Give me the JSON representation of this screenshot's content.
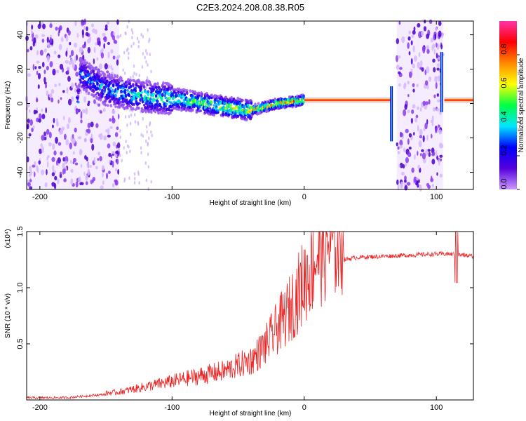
{
  "figure": {
    "title": "C2E3.2024.208.08.38.R05"
  },
  "chart_data": [
    {
      "type": "heatmap",
      "name": "spectrogram",
      "xlabel": "Height of straight line (km)",
      "ylabel": "Frequency (Hz)",
      "xlim": [
        -210,
        128
      ],
      "ylim": [
        -50,
        48
      ],
      "xticks": [
        -200,
        -100,
        0,
        100
      ],
      "yticks": [
        -40,
        -20,
        0,
        20,
        40
      ],
      "colorbar": {
        "label": "Normalized spectral amplitude",
        "range": [
          0,
          1
        ],
        "ticks": [
          0.0,
          0.2,
          0.4,
          0.6,
          0.8
        ],
        "colormap": [
          "#cc99ff",
          "#5500dd",
          "#0000ff",
          "#00e5ff",
          "#00ff44",
          "#ffff00",
          "#ff8800",
          "#ff0000",
          "#ff33aa"
        ]
      },
      "ridge": {
        "description_points": [
          [
            -170,
            18
          ],
          [
            -150,
            8
          ],
          [
            -120,
            4
          ],
          [
            -90,
            2
          ],
          [
            -60,
            -2
          ],
          [
            -40,
            -4
          ],
          [
            -20,
            0
          ],
          [
            0,
            2
          ],
          [
            65,
            2
          ],
          [
            100,
            2
          ],
          [
            128,
            2
          ]
        ]
      },
      "noise_bands_km": [
        [
          -210,
          -140
        ],
        [
          70,
          105
        ]
      ]
    },
    {
      "type": "line",
      "name": "snr",
      "xlabel": "Height of straight line (km)",
      "ylabel": "SNR (10 * v/v)",
      "y_multiplier_label": "(x10⁴)",
      "xlim": [
        -210,
        128
      ],
      "ylim": [
        0,
        1.5
      ],
      "xticks": [
        -200,
        -100,
        0,
        100
      ],
      "yticks": [
        0.5,
        1.0,
        1.5
      ],
      "color": "#ee2222",
      "envelope": {
        "x": [
          -210,
          -180,
          -160,
          -140,
          -120,
          -100,
          -80,
          -60,
          -40,
          -30,
          -20,
          -10,
          0,
          10,
          20,
          30,
          40,
          60,
          80,
          100,
          110,
          120,
          128
        ],
        "y": [
          0.02,
          0.02,
          0.04,
          0.06,
          0.1,
          0.14,
          0.18,
          0.22,
          0.3,
          0.4,
          0.55,
          0.7,
          0.9,
          1.1,
          1.2,
          1.25,
          1.27,
          1.28,
          1.29,
          1.3,
          1.3,
          1.29,
          1.28
        ]
      }
    }
  ]
}
